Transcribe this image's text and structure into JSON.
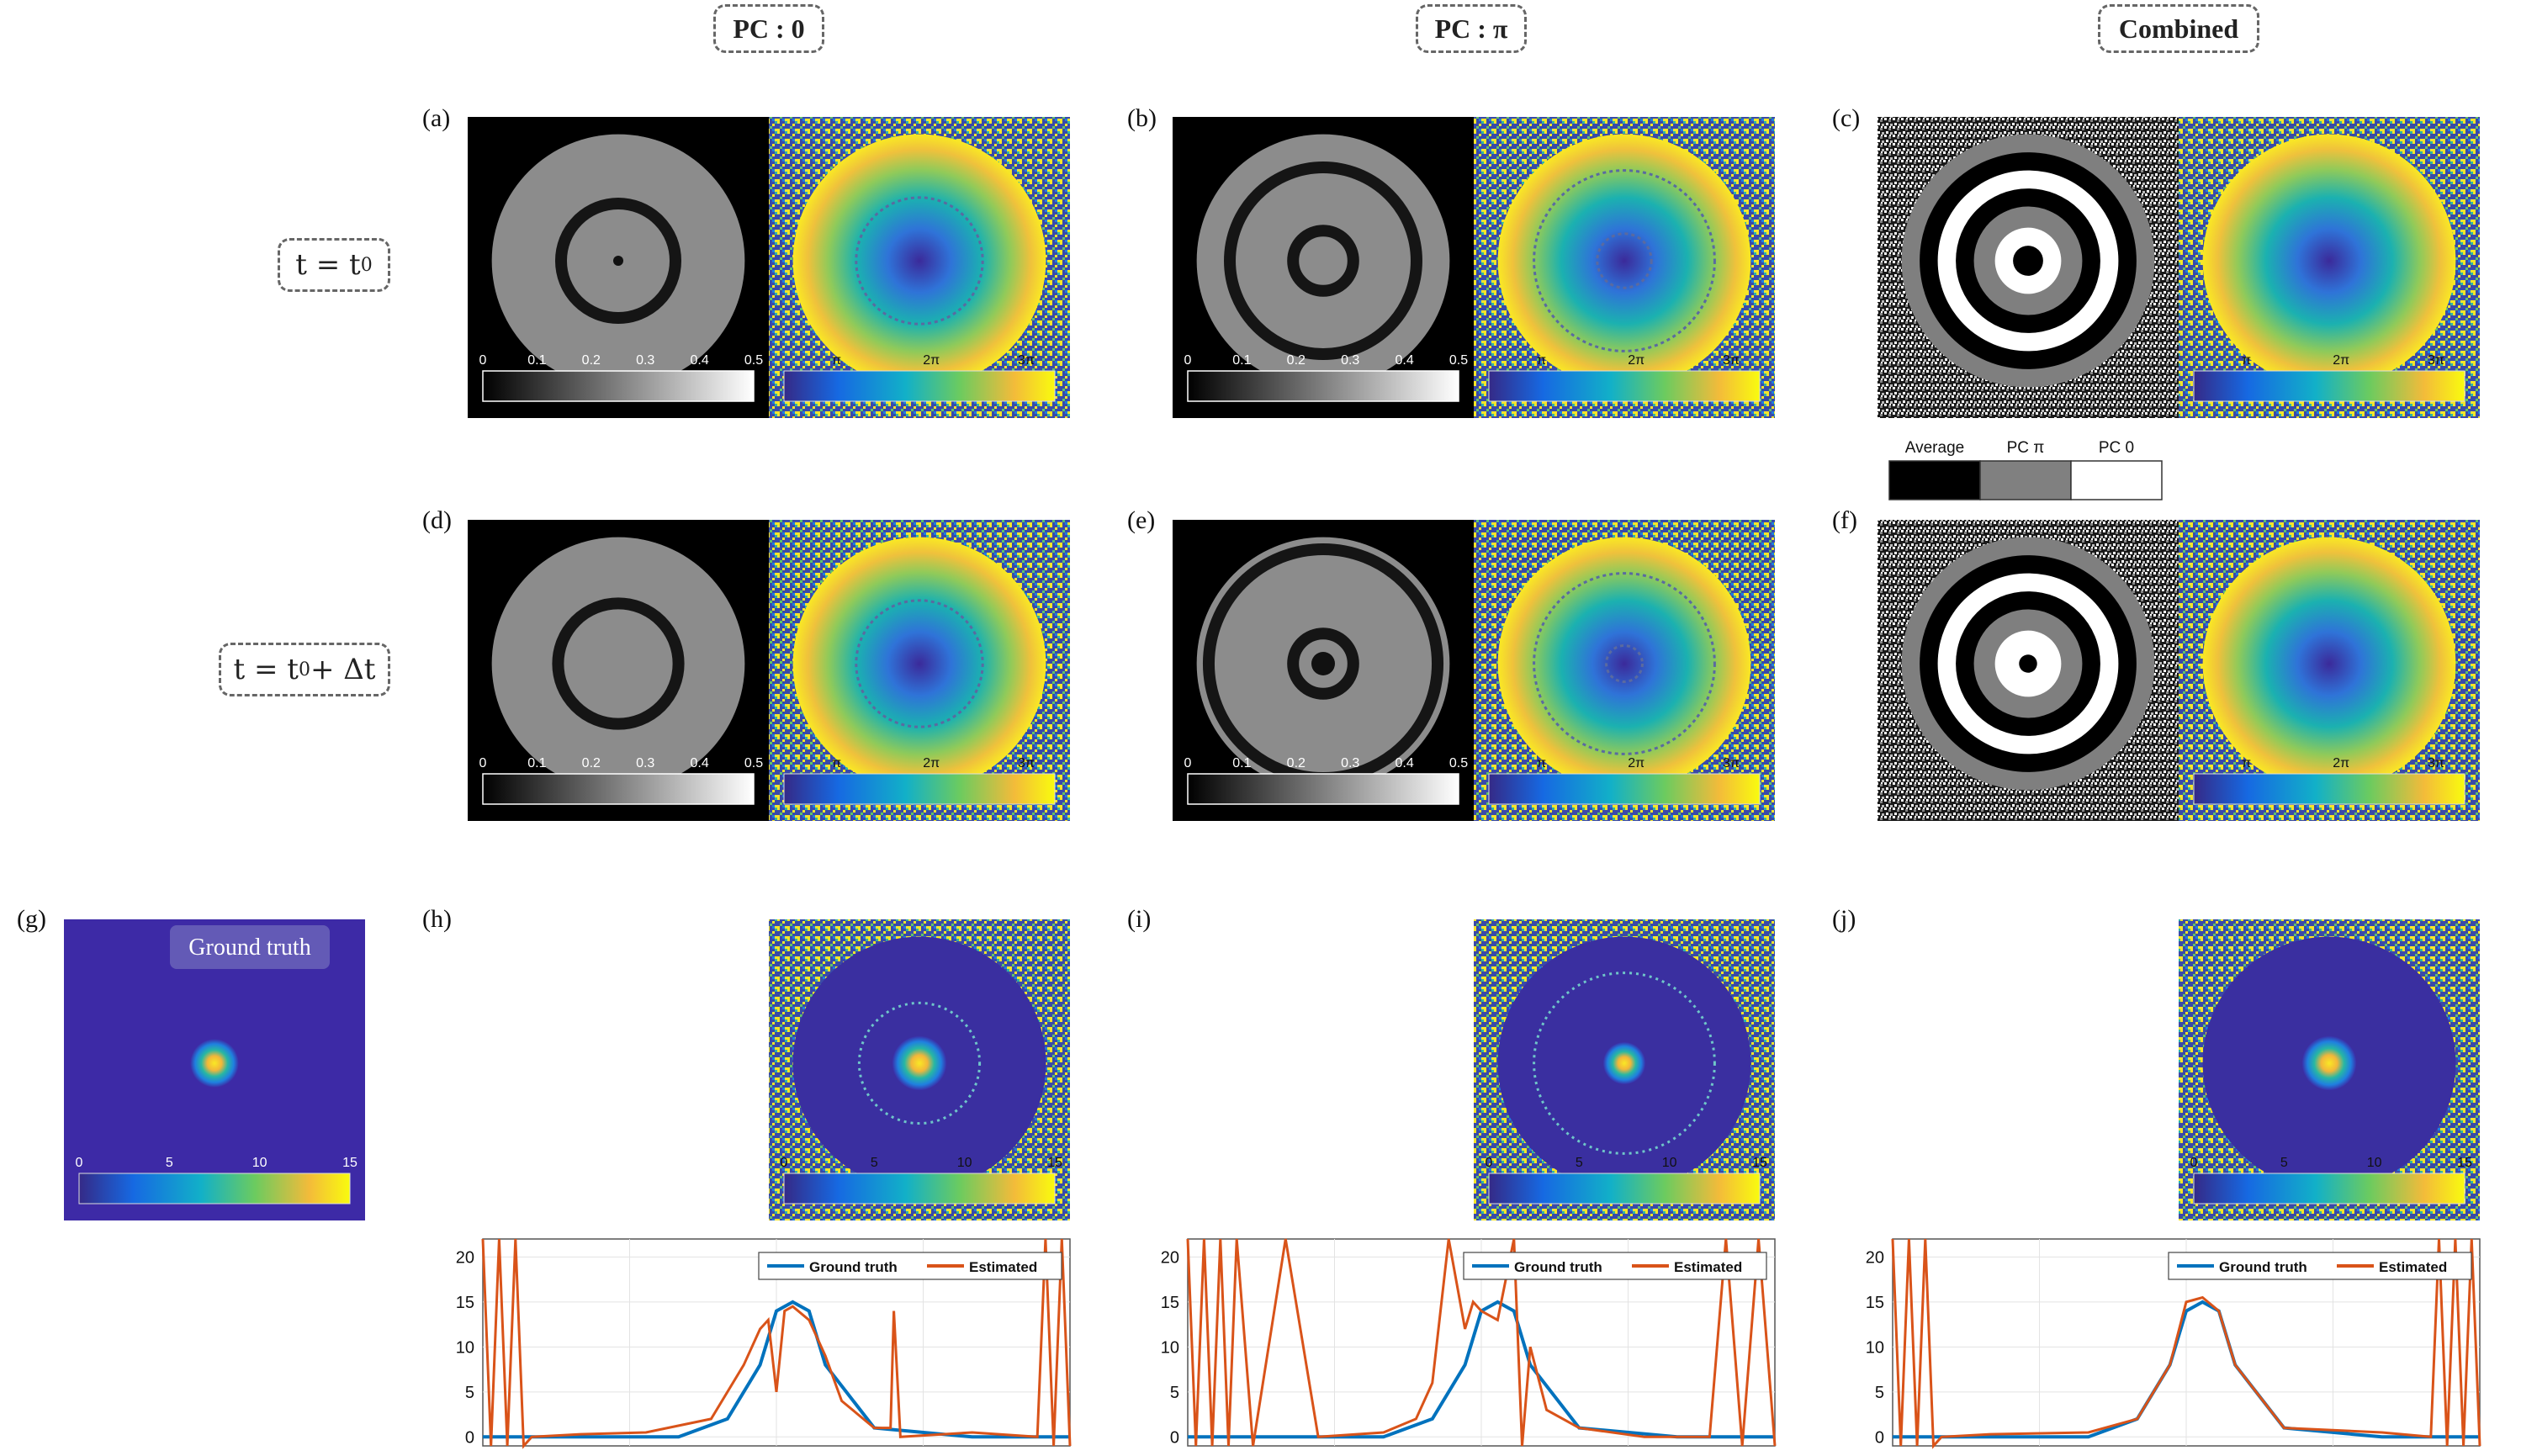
{
  "column_headers": [
    "PC : 0",
    "PC : π",
    "Combined"
  ],
  "row_labels": {
    "row1": {
      "main": "t = t",
      "sub": "0",
      "tail": ""
    },
    "row2": {
      "main": "t = t",
      "sub": "0",
      "tail": " + Δt"
    }
  },
  "panel_labels": [
    "(a)",
    "(b)",
    "(c)",
    "(d)",
    "(e)",
    "(f)",
    "(g)",
    "(h)",
    "(i)",
    "(j)"
  ],
  "colorbars": {
    "gray_ticks": [
      "0",
      "0.1",
      "0.2",
      "0.3",
      "0.4",
      "0.5"
    ],
    "phase_ticks": [
      "π",
      "2π",
      "3π"
    ],
    "error_ticks": [
      "0",
      "5",
      "10",
      "15"
    ]
  },
  "mask_legend": [
    "Average",
    "PC π",
    "PC 0"
  ],
  "ground_truth_label": "Ground truth",
  "colors": {
    "parula_low": "#352a87",
    "parula_mid": "#21b0a0",
    "parula_high": "#f9fb0e",
    "truth": "#0072bd",
    "estimated": "#d95319"
  },
  "chart_data": [
    {
      "type": "line",
      "panel": "(h)",
      "yticks": [
        0,
        5,
        10,
        15,
        20
      ],
      "ylim": [
        -1,
        22
      ],
      "xlim": [
        0,
        360
      ],
      "series": [
        {
          "name": "Ground truth",
          "x": [
            0,
            60,
            120,
            150,
            170,
            180,
            190,
            200,
            210,
            240,
            300,
            360
          ],
          "y": [
            0,
            0,
            0,
            2,
            8,
            14,
            15,
            14,
            8,
            1,
            0,
            0
          ]
        },
        {
          "name": "Estimated",
          "x": [
            0,
            5,
            10,
            15,
            20,
            25,
            30,
            60,
            100,
            140,
            160,
            170,
            175,
            180,
            185,
            190,
            200,
            210,
            220,
            240,
            250,
            252,
            256,
            300,
            340,
            345,
            350,
            355,
            360
          ],
          "y": [
            22,
            -1,
            22,
            -1,
            22,
            -1,
            0,
            0.3,
            0.5,
            2,
            8,
            12,
            13,
            5,
            14,
            14.5,
            13,
            9,
            4,
            1,
            1,
            14,
            0,
            0.5,
            0,
            22,
            -1,
            22,
            -1
          ]
        }
      ]
    },
    {
      "type": "line",
      "panel": "(i)",
      "yticks": [
        0,
        5,
        10,
        15,
        20
      ],
      "ylim": [
        -1,
        22
      ],
      "xlim": [
        0,
        360
      ],
      "series": [
        {
          "name": "Ground truth",
          "x": [
            0,
            60,
            120,
            150,
            170,
            180,
            190,
            200,
            210,
            240,
            300,
            360
          ],
          "y": [
            0,
            0,
            0,
            2,
            8,
            14,
            15,
            14,
            8,
            1,
            0,
            0
          ]
        },
        {
          "name": "Estimated",
          "x": [
            0,
            5,
            10,
            15,
            20,
            25,
            30,
            40,
            60,
            80,
            120,
            140,
            150,
            160,
            170,
            175,
            180,
            190,
            200,
            205,
            210,
            220,
            240,
            280,
            320,
            330,
            340,
            350,
            360
          ],
          "y": [
            22,
            -1,
            22,
            -1,
            22,
            -1,
            22,
            -1,
            22,
            0,
            0.5,
            2,
            6,
            22,
            12,
            15,
            14,
            13,
            22,
            -1,
            10,
            3,
            1,
            0,
            0,
            22,
            -1,
            22,
            -1
          ]
        }
      ]
    },
    {
      "type": "line",
      "panel": "(j)",
      "yticks": [
        0,
        5,
        10,
        15,
        20
      ],
      "ylim": [
        -1,
        22
      ],
      "xlim": [
        0,
        360
      ],
      "series": [
        {
          "name": "Ground truth",
          "x": [
            0,
            60,
            120,
            150,
            170,
            180,
            190,
            200,
            210,
            240,
            300,
            360
          ],
          "y": [
            0,
            0,
            0,
            2,
            8,
            14,
            15,
            14,
            8,
            1,
            0,
            0
          ]
        },
        {
          "name": "Estimated",
          "x": [
            0,
            5,
            10,
            15,
            20,
            25,
            30,
            60,
            120,
            150,
            170,
            180,
            190,
            200,
            210,
            240,
            300,
            330,
            335,
            340,
            345,
            350,
            355,
            360
          ],
          "y": [
            22,
            -1,
            22,
            -1,
            22,
            -1,
            0,
            0.3,
            0.5,
            2,
            8,
            15,
            15.5,
            14,
            8,
            1,
            0.5,
            0,
            22,
            -1,
            22,
            -1,
            22,
            -1
          ]
        }
      ]
    }
  ]
}
